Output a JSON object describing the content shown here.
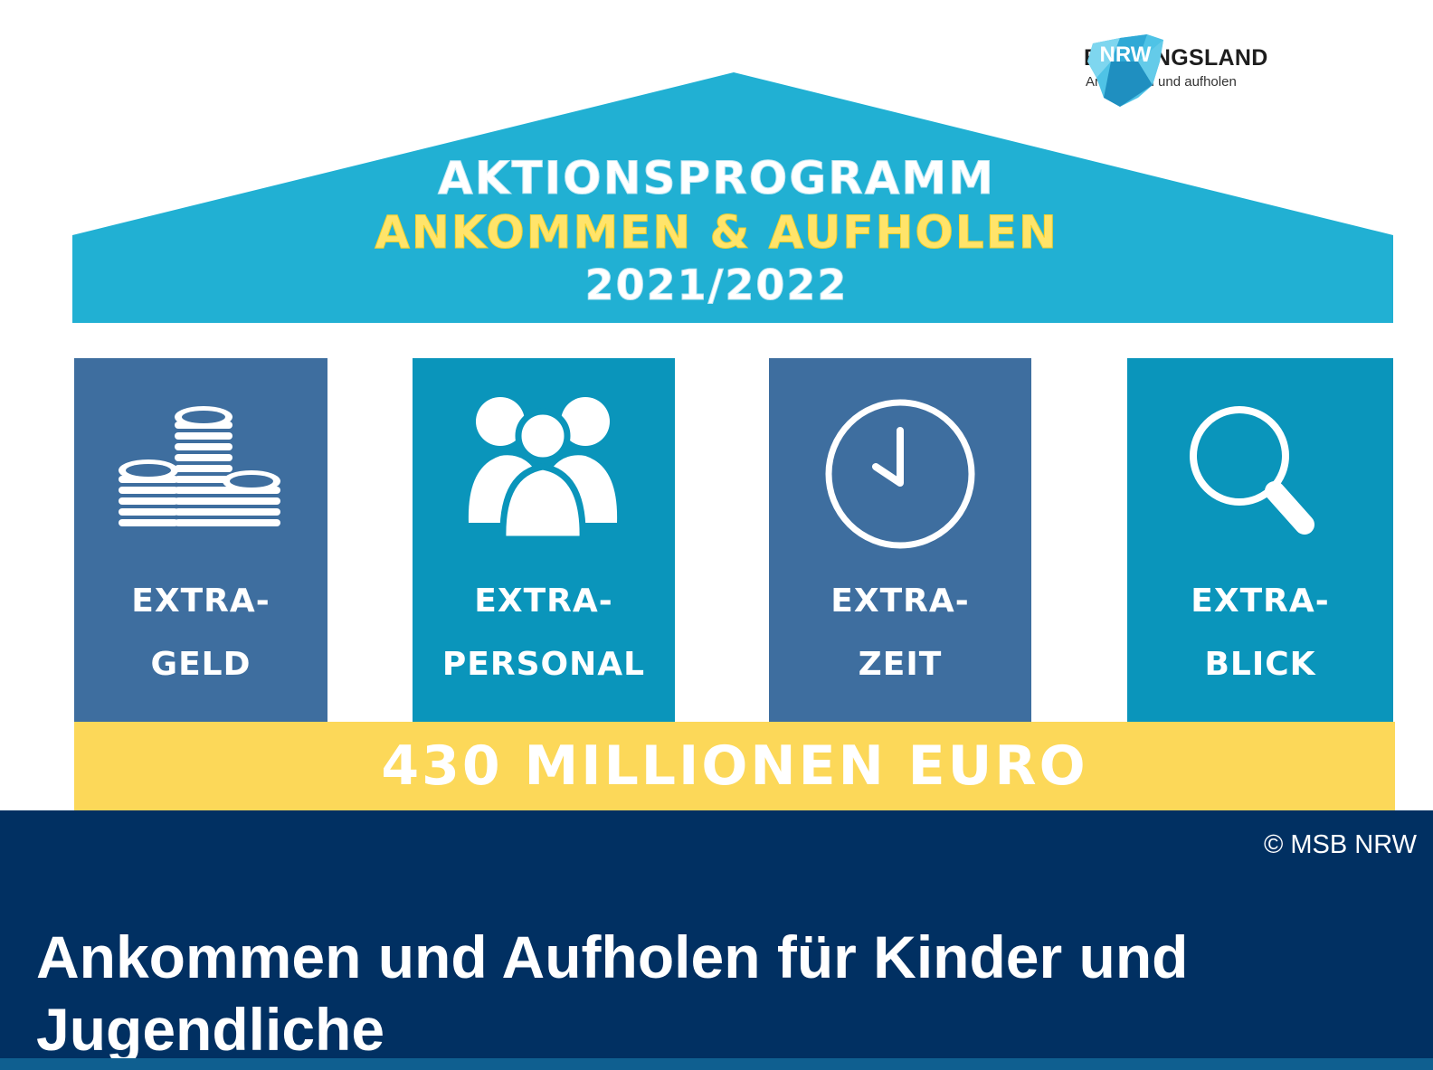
{
  "logo": {
    "title": "BILDUNGSLAND",
    "mark_text": "NRW",
    "subtitle": "Ankommen und aufholen"
  },
  "roof": {
    "line1": "AKTIONSPROGRAMM",
    "line2": "ANKOMMEN  & AUFHOLEN",
    "line3": "2021/2022"
  },
  "pillars": [
    {
      "line1": "EXTRA-",
      "line2": "GELD",
      "icon": "coins-icon"
    },
    {
      "line1": "EXTRA-",
      "line2": "PERSONAL",
      "icon": "people-icon"
    },
    {
      "line1": "EXTRA-",
      "line2": "ZEIT",
      "icon": "clock-icon"
    },
    {
      "line1": "EXTRA-",
      "line2": "BLICK",
      "icon": "magnifier-icon"
    }
  ],
  "base": {
    "label": "430 MILLIONEN EURO"
  },
  "caption": {
    "copyright": "© MSB NRW",
    "headline": "Ankommen und Aufholen für Kinder und Jugendliche"
  },
  "colors": {
    "roof": "#21b0d3",
    "pillar_dark": "#3e6e9f",
    "pillar_light": "#0a95bb",
    "base": "#fcd859",
    "caption_bg": "#013062",
    "accent_yellow": "#ffe46a"
  }
}
